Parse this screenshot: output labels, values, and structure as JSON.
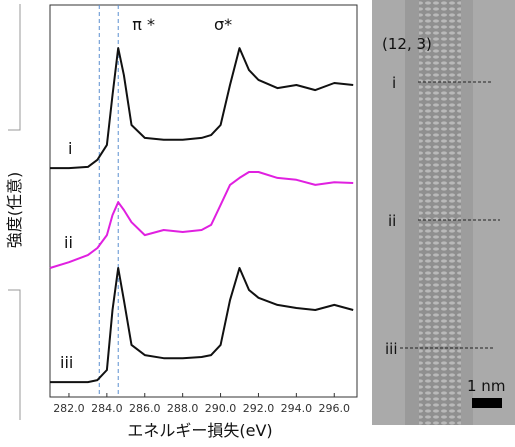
{
  "chart_data": {
    "type": "line",
    "x_label": "エネルギー損失(eV)",
    "y_label": "強度(任意)",
    "x": [
      281,
      282,
      283,
      283.5,
      284,
      284.3,
      284.6,
      284.9,
      285.3,
      286,
      287,
      288,
      289,
      289.5,
      290,
      290.5,
      291,
      291.5,
      292,
      293,
      294,
      295,
      296,
      297
    ],
    "series": [
      {
        "name": "i",
        "color": "#111111",
        "values": [
          58.4,
          58.4,
          58.7,
          60.5,
          64.3,
          77.0,
          89.0,
          82.1,
          69.4,
          66.1,
          65.6,
          65.6,
          66.1,
          66.8,
          69.4,
          79.6,
          89.0,
          83.4,
          80.9,
          78.8,
          79.6,
          78.3,
          80.1,
          79.6
        ]
      },
      {
        "name": "ii",
        "color": "#e020e0",
        "values": [
          32.9,
          34.4,
          36.2,
          38.0,
          41.3,
          46.4,
          49.7,
          47.7,
          44.6,
          41.3,
          42.6,
          42.1,
          42.6,
          43.9,
          49.0,
          54.1,
          55.9,
          57.4,
          57.4,
          55.9,
          55.4,
          54.1,
          54.8,
          54.6
        ]
      },
      {
        "name": "iii",
        "color": "#111111",
        "values": [
          3.8,
          3.8,
          3.8,
          4.3,
          6.9,
          22.2,
          32.9,
          24.7,
          13.3,
          10.7,
          9.9,
          9.9,
          10.2,
          10.7,
          13.3,
          24.7,
          32.9,
          27.3,
          25.3,
          23.5,
          22.7,
          22.2,
          23.5,
          22.2
        ]
      }
    ],
    "annotations": [
      "π *",
      "σ*"
    ],
    "vlines": [
      283.6,
      284.6
    ],
    "xlim": [
      281,
      297.2
    ],
    "ylim": [
      0,
      100
    ],
    "xticks": [
      {
        "value": 282,
        "label": "282.0"
      },
      {
        "value": 284,
        "label": "284.0"
      },
      {
        "value": 286,
        "label": "286.0"
      },
      {
        "value": 288,
        "label": "288.0"
      },
      {
        "value": 290,
        "label": "290.0"
      },
      {
        "value": 292,
        "label": "292.0"
      },
      {
        "value": 294,
        "label": "294.0"
      },
      {
        "value": 296,
        "label": "296.0"
      }
    ]
  },
  "image": {
    "chirality": "(12, 3)",
    "markers": [
      "i",
      "ii",
      "iii"
    ],
    "scale_bar": "1 nm"
  }
}
